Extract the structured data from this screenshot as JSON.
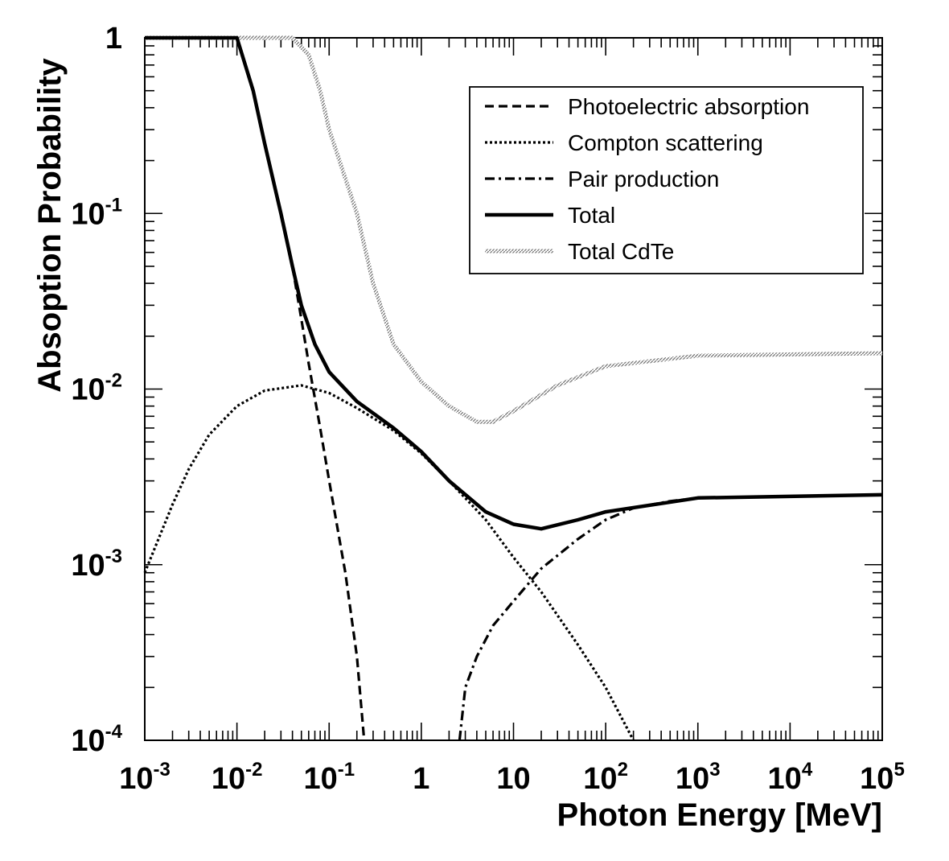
{
  "chart_data": {
    "type": "line",
    "xlabel": "Photon Energy [MeV]",
    "ylabel": "Absoption Probability",
    "xscale": "log",
    "yscale": "log",
    "xlim": [
      0.001,
      100000
    ],
    "ylim": [
      0.0001,
      1
    ],
    "x_ticks": [
      {
        "base": "10",
        "exp": "-3",
        "value": 0.001
      },
      {
        "base": "10",
        "exp": "-2",
        "value": 0.01
      },
      {
        "base": "10",
        "exp": "-1",
        "value": 0.1
      },
      {
        "base": "1",
        "exp": "",
        "value": 1
      },
      {
        "base": "10",
        "exp": "",
        "value": 10
      },
      {
        "base": "10",
        "exp": "2",
        "value": 100
      },
      {
        "base": "10",
        "exp": "3",
        "value": 1000
      },
      {
        "base": "10",
        "exp": "4",
        "value": 10000
      },
      {
        "base": "10",
        "exp": "5",
        "value": 100000
      }
    ],
    "y_ticks": [
      {
        "base": "1",
        "exp": "",
        "value": 1
      },
      {
        "base": "10",
        "exp": "-1",
        "value": 0.1
      },
      {
        "base": "10",
        "exp": "-2",
        "value": 0.01
      },
      {
        "base": "10",
        "exp": "-3",
        "value": 0.001
      },
      {
        "base": "10",
        "exp": "-4",
        "value": 0.0001
      }
    ],
    "legend_position": "top-right",
    "grid": false,
    "series": [
      {
        "name": "Photoelectric absorption",
        "style": "dashed",
        "color": "#000000",
        "points": [
          [
            0.001,
            1.0
          ],
          [
            0.01,
            1.0
          ],
          [
            0.015,
            0.5
          ],
          [
            0.02,
            0.25
          ],
          [
            0.03,
            0.1
          ],
          [
            0.04,
            0.05
          ],
          [
            0.05,
            0.025
          ],
          [
            0.06,
            0.014
          ],
          [
            0.08,
            0.006
          ],
          [
            0.1,
            0.003
          ],
          [
            0.15,
            0.0009
          ],
          [
            0.2,
            0.0003
          ],
          [
            0.24,
            0.0001
          ]
        ]
      },
      {
        "name": "Compton scattering",
        "style": "dotted",
        "color": "#000000",
        "points": [
          [
            0.001,
            0.0009
          ],
          [
            0.002,
            0.0022
          ],
          [
            0.003,
            0.0035
          ],
          [
            0.005,
            0.0055
          ],
          [
            0.01,
            0.008
          ],
          [
            0.02,
            0.0098
          ],
          [
            0.05,
            0.0105
          ],
          [
            0.1,
            0.0095
          ],
          [
            0.2,
            0.0078
          ],
          [
            0.5,
            0.0058
          ],
          [
            1,
            0.0043
          ],
          [
            2,
            0.003
          ],
          [
            5,
            0.0018
          ],
          [
            10,
            0.0011
          ],
          [
            20,
            0.0007
          ],
          [
            50,
            0.00035
          ],
          [
            100,
            0.0002
          ],
          [
            200,
            0.0001
          ]
        ]
      },
      {
        "name": "Pair production",
        "style": "dashdot",
        "color": "#000000",
        "points": [
          [
            2.6,
            0.0001
          ],
          [
            3,
            0.0002
          ],
          [
            4,
            0.0003
          ],
          [
            6,
            0.00045
          ],
          [
            10,
            0.00062
          ],
          [
            20,
            0.00095
          ],
          [
            50,
            0.0014
          ],
          [
            100,
            0.0018
          ],
          [
            200,
            0.0021
          ],
          [
            500,
            0.0023
          ],
          [
            1000,
            0.0024
          ],
          [
            100000,
            0.0025
          ]
        ]
      },
      {
        "name": "Total",
        "style": "solid",
        "color": "#000000",
        "points": [
          [
            0.001,
            1.0
          ],
          [
            0.01,
            1.0
          ],
          [
            0.015,
            0.5
          ],
          [
            0.02,
            0.25
          ],
          [
            0.03,
            0.1
          ],
          [
            0.04,
            0.05
          ],
          [
            0.05,
            0.03
          ],
          [
            0.07,
            0.018
          ],
          [
            0.1,
            0.0125
          ],
          [
            0.2,
            0.0085
          ],
          [
            0.5,
            0.006
          ],
          [
            1,
            0.0044
          ],
          [
            2,
            0.003
          ],
          [
            5,
            0.002
          ],
          [
            10,
            0.0017
          ],
          [
            20,
            0.0016
          ],
          [
            50,
            0.0018
          ],
          [
            100,
            0.002
          ],
          [
            1000,
            0.0024
          ],
          [
            100000,
            0.0025
          ]
        ]
      },
      {
        "name": "Total CdTe",
        "style": "hatched",
        "color": "#888888",
        "points": [
          [
            0.001,
            1.0
          ],
          [
            0.04,
            1.0
          ],
          [
            0.06,
            0.8
          ],
          [
            0.08,
            0.5
          ],
          [
            0.1,
            0.3
          ],
          [
            0.2,
            0.1
          ],
          [
            0.3,
            0.04
          ],
          [
            0.5,
            0.018
          ],
          [
            1,
            0.011
          ],
          [
            2,
            0.008
          ],
          [
            4,
            0.0065
          ],
          [
            6,
            0.0065
          ],
          [
            10,
            0.0075
          ],
          [
            30,
            0.0105
          ],
          [
            100,
            0.0135
          ],
          [
            1000,
            0.0155
          ],
          [
            100000,
            0.016
          ]
        ]
      }
    ]
  },
  "colors": {
    "axes": "#000000",
    "cdte": "#888888",
    "background": "#ffffff"
  }
}
